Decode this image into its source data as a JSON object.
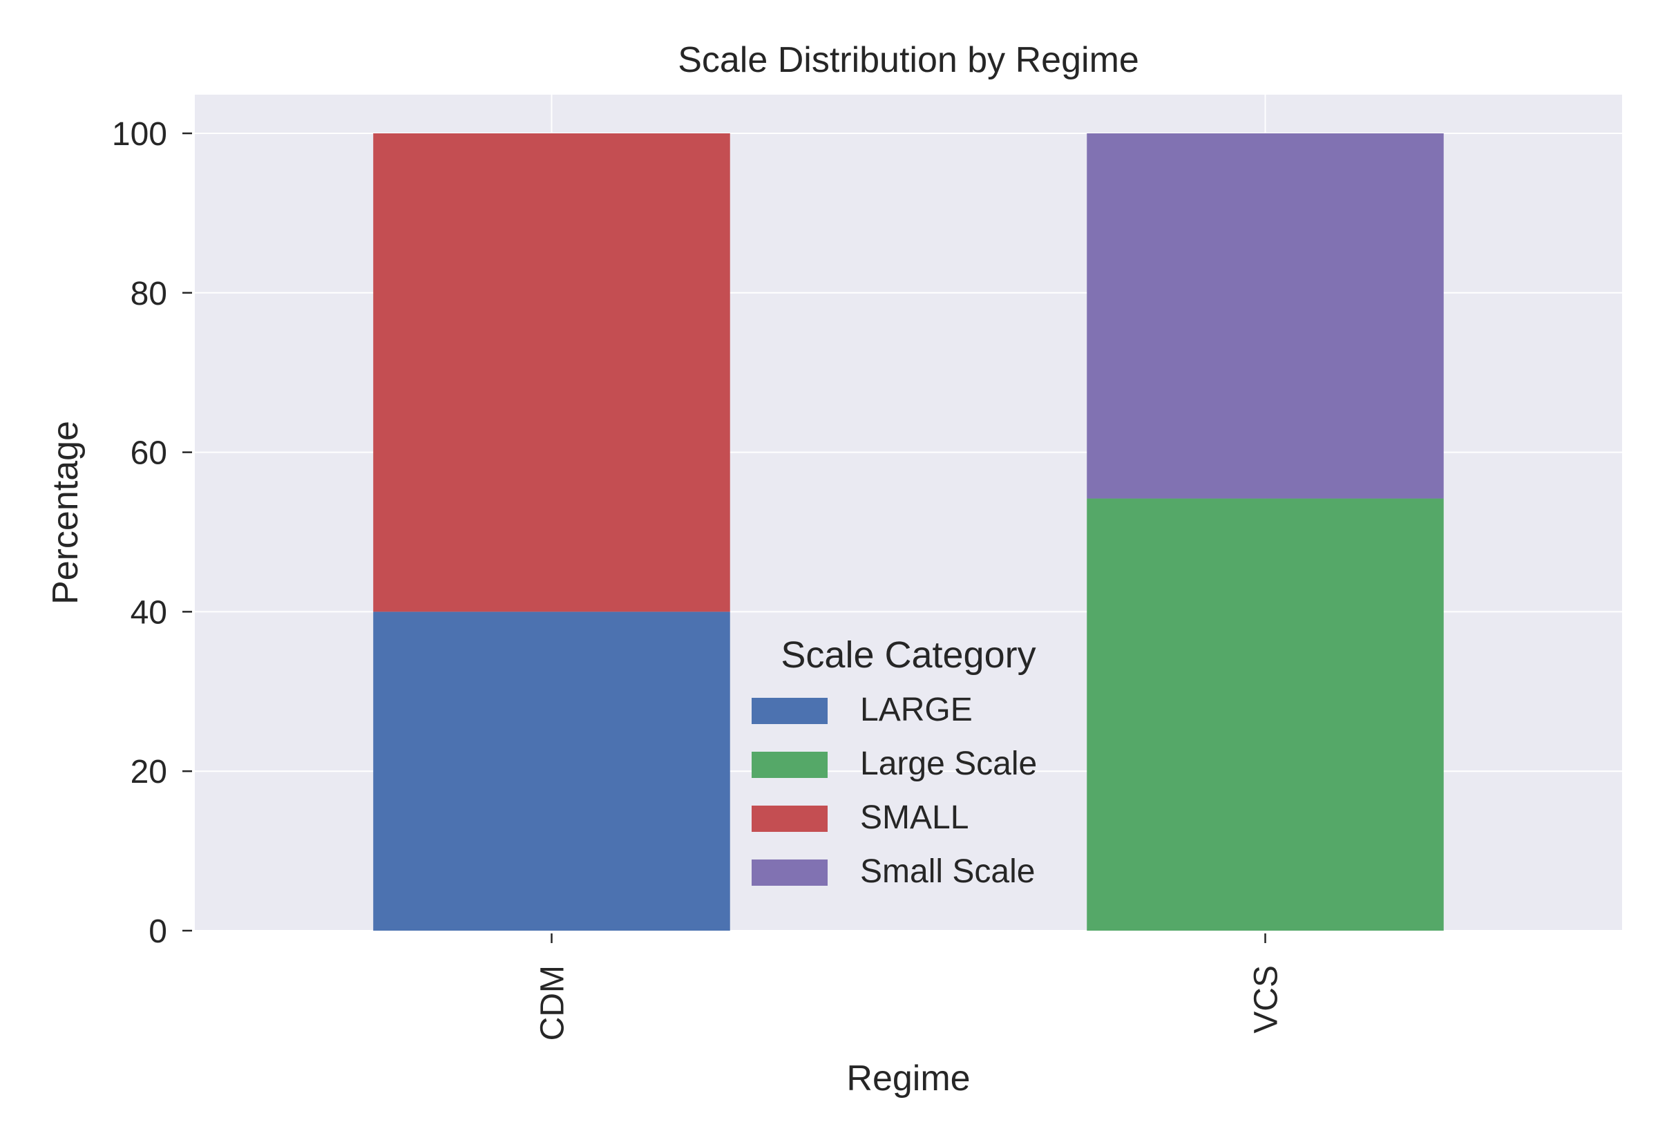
{
  "chart_data": {
    "type": "bar",
    "stacked": true,
    "title": "Scale Distribution by Regime",
    "xlabel": "Regime",
    "ylabel": "Percentage",
    "categories": [
      "CDM",
      "VCS"
    ],
    "ylim": [
      0,
      105
    ],
    "yticks": [
      0,
      20,
      40,
      60,
      80,
      100
    ],
    "grid": true,
    "legend": {
      "title": "Scale Category",
      "placement": "lower-center"
    },
    "series": [
      {
        "name": "LARGE",
        "color": "#4c72b0",
        "values": [
          40,
          0
        ]
      },
      {
        "name": "Large Scale",
        "color": "#55a868",
        "values": [
          0,
          54.2
        ]
      },
      {
        "name": "SMALL",
        "color": "#c44e52",
        "values": [
          60,
          0
        ]
      },
      {
        "name": "Small Scale",
        "color": "#8172b2",
        "values": [
          0,
          45.8
        ]
      }
    ]
  }
}
